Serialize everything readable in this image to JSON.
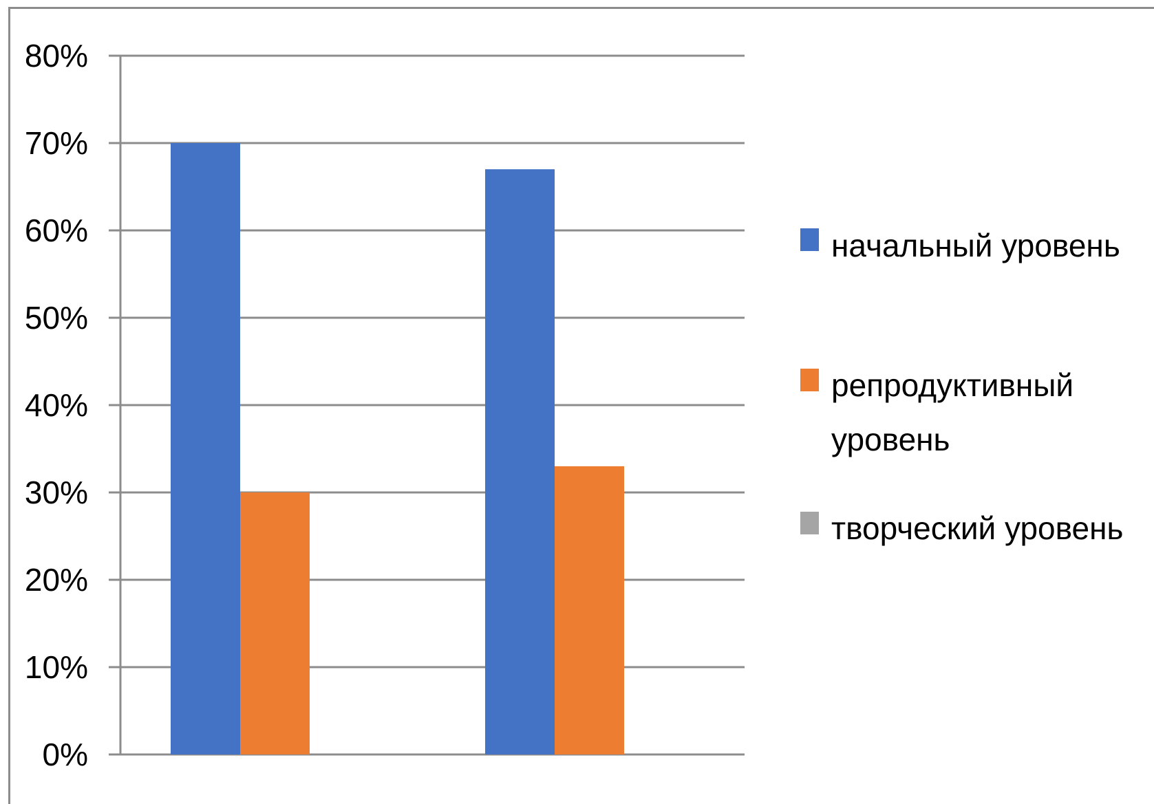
{
  "chart_data": {
    "type": "bar",
    "title": "",
    "xlabel": "",
    "ylabel": "",
    "categories": [
      "",
      ""
    ],
    "series": [
      {
        "name": "начальный уровень",
        "values": [
          70,
          67
        ],
        "color": "#4472C4"
      },
      {
        "name": "репродуктивный уровень",
        "values": [
          30,
          33
        ],
        "color": "#ED7D31"
      },
      {
        "name": "творческий  уровень",
        "values": [
          0,
          0
        ],
        "color": "#A5A5A5"
      }
    ],
    "ylim": [
      0,
      80
    ],
    "yticks": [
      0,
      10,
      20,
      30,
      40,
      50,
      60,
      70,
      80
    ],
    "ytick_labels": [
      "0%",
      "10%",
      "20%",
      "30%",
      "40%",
      "50%",
      "60%",
      "70%",
      "80%"
    ],
    "grid": true,
    "legend_position": "right"
  },
  "legend": {
    "item_0_line_0": "начальный уровень",
    "item_1_line_0": "репродуктивный",
    "item_1_line_1": "уровень",
    "item_2_line_0": "творческий  уровень"
  }
}
